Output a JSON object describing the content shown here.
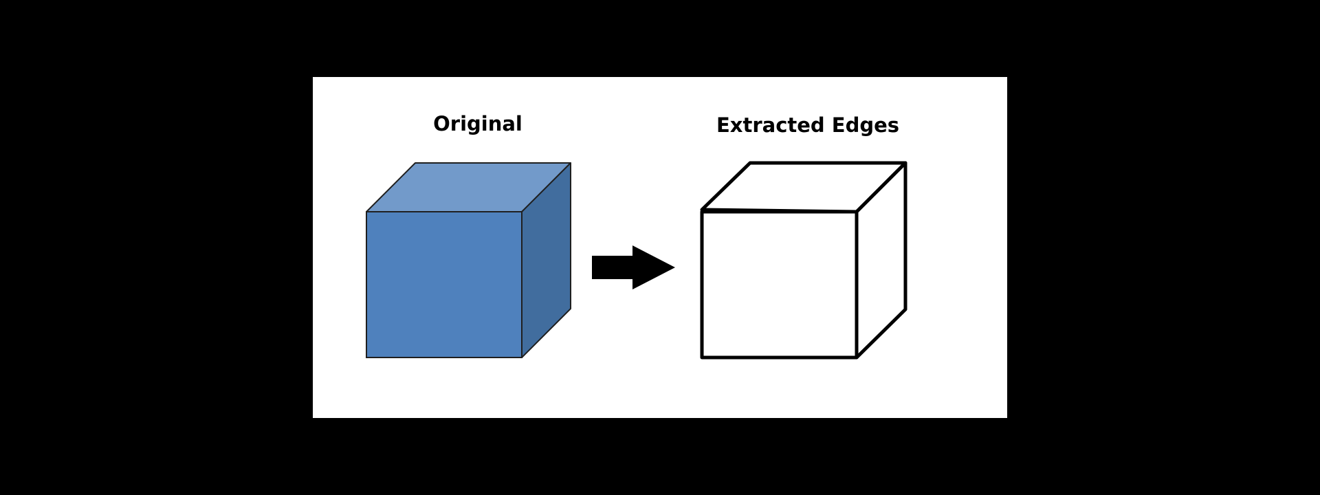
{
  "panels": {
    "original": {
      "title": "Original"
    },
    "edges": {
      "title": "Extracted Edges"
    }
  },
  "colors": {
    "background": "#000000",
    "canvas": "#ffffff",
    "cube_front": "#4f81bd",
    "cube_top": "#729aca",
    "cube_side": "#416d9e",
    "edge_stroke": "#000000",
    "arrow": "#000000"
  },
  "icons": {
    "cube": "filled-3d-cube",
    "edge_cube": "wireframe-3d-cube",
    "arrow": "right-arrow"
  }
}
